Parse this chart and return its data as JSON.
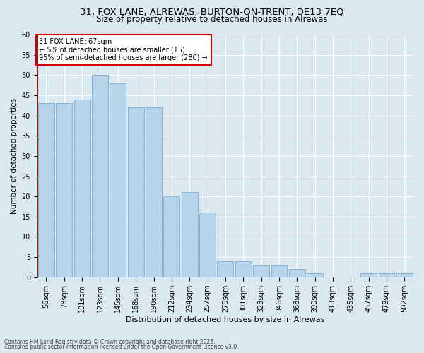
{
  "title1": "31, FOX LANE, ALREWAS, BURTON-ON-TRENT, DE13 7EQ",
  "title2": "Size of property relative to detached houses in Alrewas",
  "xlabel": "Distribution of detached houses by size in Alrewas",
  "ylabel": "Number of detached properties",
  "categories": [
    "56sqm",
    "78sqm",
    "101sqm",
    "123sqm",
    "145sqm",
    "168sqm",
    "190sqm",
    "212sqm",
    "234sqm",
    "257sqm",
    "279sqm",
    "301sqm",
    "323sqm",
    "346sqm",
    "368sqm",
    "390sqm",
    "413sqm",
    "435sqm",
    "457sqm",
    "479sqm",
    "502sqm"
  ],
  "values": [
    43,
    43,
    44,
    50,
    48,
    42,
    42,
    20,
    21,
    16,
    4,
    4,
    3,
    3,
    2,
    1,
    0,
    0,
    1,
    1,
    1
  ],
  "bar_color": "#b8d4ea",
  "bar_edge_color": "#7aafd4",
  "annotation_text": "31 FOX LANE: 67sqm\n← 5% of detached houses are smaller (15)\n95% of semi-detached houses are larger (280) →",
  "annotation_box_color": "#ffffff",
  "annotation_box_edge_color": "#cc0000",
  "marker_line_color": "#cc0000",
  "ylim": [
    0,
    60
  ],
  "yticks": [
    0,
    5,
    10,
    15,
    20,
    25,
    30,
    35,
    40,
    45,
    50,
    55,
    60
  ],
  "bg_color": "#dce8f0",
  "grid_color": "#ffffff",
  "footer1": "Contains HM Land Registry data © Crown copyright and database right 2025.",
  "footer2": "Contains public sector information licensed under the Open Government Licence v3.0.",
  "title1_fontsize": 9.5,
  "title2_fontsize": 8.5,
  "xlabel_fontsize": 8.0,
  "ylabel_fontsize": 7.5,
  "tick_fontsize": 7.0,
  "annot_fontsize": 7.0,
  "footer_fontsize": 5.5
}
